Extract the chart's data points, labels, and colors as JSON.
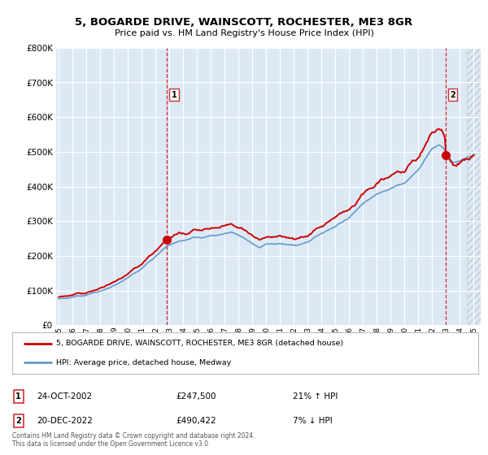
{
  "title": "5, BOGARDE DRIVE, WAINSCOTT, ROCHESTER, ME3 8GR",
  "subtitle": "Price paid vs. HM Land Registry's House Price Index (HPI)",
  "background_color": "#ffffff",
  "plot_bg_color": "#dce9f5",
  "red_line_label": "5, BOGARDE DRIVE, WAINSCOTT, ROCHESTER, ME3 8GR (detached house)",
  "blue_line_label": "HPI: Average price, detached house, Medway",
  "annotation1_date": "24-OCT-2002",
  "annotation1_price": "£247,500",
  "annotation1_hpi": "21% ↑ HPI",
  "annotation2_date": "20-DEC-2022",
  "annotation2_price": "£490,422",
  "annotation2_hpi": "7% ↓ HPI",
  "footer": "Contains HM Land Registry data © Crown copyright and database right 2024.\nThis data is licensed under the Open Government Licence v3.0.",
  "ylim": [
    0,
    800000
  ],
  "yticks": [
    0,
    100000,
    200000,
    300000,
    400000,
    500000,
    600000,
    700000,
    800000
  ],
  "red_color": "#cc0000",
  "blue_color": "#6699cc",
  "marker1_x": 2002.82,
  "marker1_y": 247500,
  "marker2_x": 2022.97,
  "marker2_y": 490422,
  "vline1_x": 2002.82,
  "vline2_x": 2022.97,
  "xlim_left": 1994.8,
  "xlim_right": 2025.5
}
